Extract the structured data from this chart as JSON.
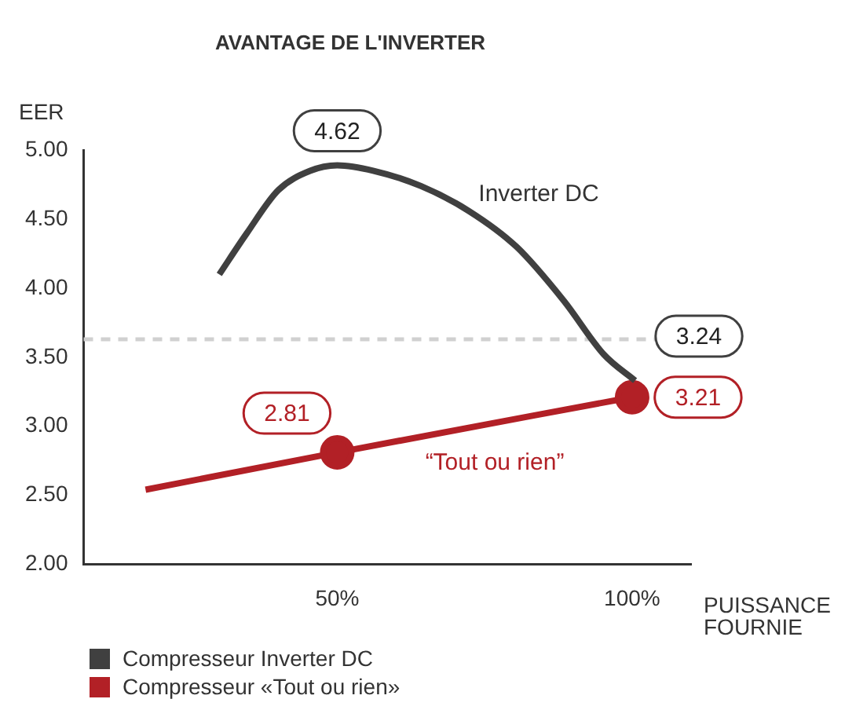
{
  "chart_data": {
    "type": "line",
    "title": "AVANTAGE DE L'INVERTER",
    "xlabel": "PUISSANCE FOURNIE",
    "ylabel": "EER",
    "xlim": [
      7,
      110
    ],
    "xticks": [
      {
        "value": 50,
        "label": "50%"
      },
      {
        "value": 100,
        "label": "100%"
      }
    ],
    "ylim": [
      2,
      5
    ],
    "yticks": [
      {
        "value": 2,
        "label": "2.00"
      },
      {
        "value": 2.5,
        "label": "2.50"
      },
      {
        "value": 3,
        "label": "3.00"
      },
      {
        "value": 3.5,
        "label": "3.50"
      },
      {
        "value": 4,
        "label": "4.00"
      },
      {
        "value": 4.5,
        "label": "4.50"
      },
      {
        "value": 5,
        "label": "5.00"
      }
    ],
    "grid": false,
    "legend": "bottom",
    "line_style": "solid",
    "series": [
      {
        "name": "Compresseur Inverter DC",
        "color": "#404040",
        "marker": "none",
        "x": [
          30,
          34.7,
          40,
          45.4,
          50,
          56.2,
          64.2,
          72.3,
          80.4,
          88.4,
          95.2,
          100.5
        ],
        "values": [
          4.1,
          4.4,
          4.71,
          4.85,
          4.89,
          4.85,
          4.74,
          4.56,
          4.3,
          3.91,
          3.52,
          3.33
        ]
      },
      {
        "name": "Compresseur «Tout ou rien»",
        "color": "#b22026",
        "marker": "circle",
        "x": [
          17.5,
          50,
          100
        ],
        "values": [
          2.54,
          2.81,
          3.21
        ],
        "value_labels": [
          null,
          "2.81",
          "3.21"
        ]
      }
    ],
    "ref_lines": [
      {
        "axis": "y",
        "value": 3.63,
        "color": "#d0d0d0",
        "line_style": "dashed"
      }
    ],
    "annotations": [
      {
        "text": "4.62",
        "x": 50,
        "y": 4.89
      },
      "3.24",
      "Inverter DC",
      "“Tout ou rien”"
    ]
  }
}
